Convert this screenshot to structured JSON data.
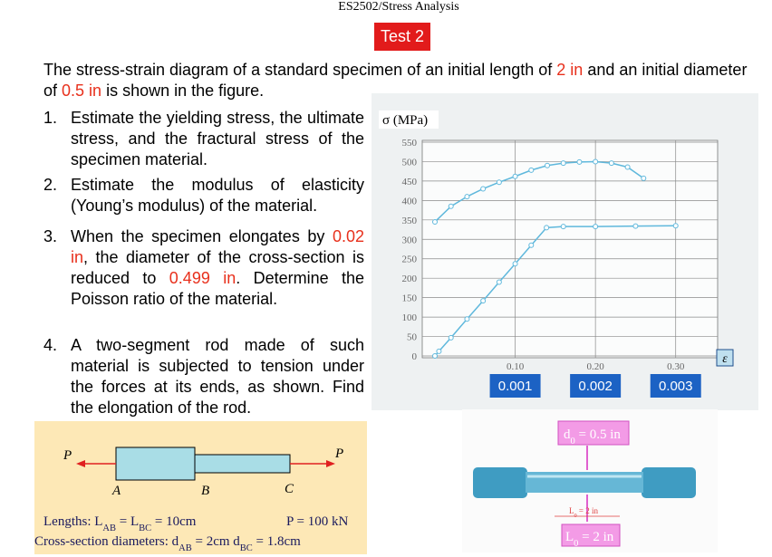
{
  "header": {
    "course": "ES2502/Stress Analysis",
    "test": "Test 2"
  },
  "intro": [
    "The stress-strain diagram of a standard specimen of an initial length of ",
    "2 in",
    " and an initial diameter of ",
    "0.5 in",
    " is shown in the figure."
  ],
  "questions": [
    {
      "number": "1.",
      "parts": [
        "Estimate the yielding stress, the ultimate stress, and the fractural stress  of the specimen material."
      ]
    },
    {
      "number": "2.",
      "parts": [
        "Estimate the modulus of elasticity (Young’s modulus) of the material."
      ]
    },
    {
      "number": "3.",
      "parts": [
        "When the specimen elongates by ",
        "0.02 in",
        ", the diameter of the cross-section  is reduced to ",
        "0.499 in",
        ". Determine the  Poisson ratio of the material."
      ]
    },
    {
      "number": "4.",
      "parts": [
        "A two-segment rod made of such material is subjected to tension under the forces at its ends, as shown. Find the elongation of the rod."
      ]
    }
  ],
  "figure": {
    "y_label": "σ (MPa)",
    "x_label": "ε",
    "xlim": [
      0,
      0.35
    ],
    "ylim": [
      0,
      550
    ],
    "yticks": [
      0,
      50,
      100,
      150,
      200,
      250,
      300,
      350,
      400,
      450,
      500,
      550
    ],
    "xticks": [
      {
        "value": 0.1,
        "label": "0.10"
      },
      {
        "value": 0.2,
        "label": "0.20"
      },
      {
        "value": 0.3,
        "label": "0.30"
      }
    ],
    "strain_labels": [
      "0.001",
      "0.002",
      "0.003"
    ],
    "series": [
      {
        "color": "#5fb8dc",
        "x": [
          0,
          0.005,
          0.02,
          0.04,
          0.06,
          0.08,
          0.1,
          0.12,
          0.139,
          0.16,
          0.2,
          0.25,
          0.3
        ],
        "values": [
          0,
          12,
          47,
          95,
          142,
          190,
          237,
          285,
          330,
          333,
          333,
          334,
          335
        ]
      },
      {
        "color": "#5fb8dc",
        "x": [
          0,
          0.02,
          0.04,
          0.06,
          0.08,
          0.1,
          0.12,
          0.14,
          0.16,
          0.18,
          0.2,
          0.22,
          0.24,
          0.26
        ],
        "values": [
          345,
          385,
          410,
          430,
          447,
          462,
          478,
          490,
          496,
          499,
          500,
          496,
          486,
          457
        ]
      }
    ]
  },
  "rod": {
    "forces": [
      "P",
      "P"
    ],
    "points": [
      "A",
      "B",
      "C"
    ],
    "lengths": [
      "Lengths:  L",
      "AB",
      " = L",
      "BC",
      " = 10cm"
    ],
    "load": "P = 100 kN",
    "diameters": [
      "Cross-section diameters:  d",
      "AB",
      " = 2cm   d",
      "BC",
      " = 1.8cm"
    ]
  },
  "specimen": {
    "diameter": [
      "d",
      "0",
      " = 0.5 in"
    ],
    "length": [
      "L",
      "0",
      " = 2 in"
    ],
    "dimension": [
      "L",
      "0",
      " = 2 in"
    ]
  }
}
